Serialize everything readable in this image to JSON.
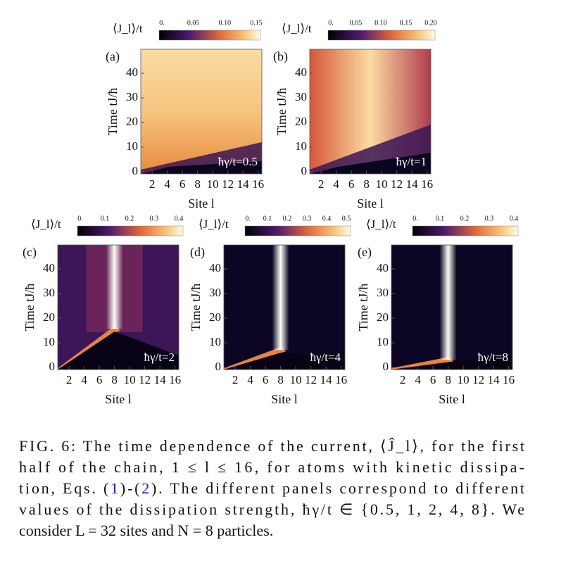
{
  "figure": {
    "panels": [
      {
        "label": "(a)",
        "annotation": "ħγ/t=0.5",
        "colorbar_label": "⟨J_l⟩/t",
        "colorbar_ticks": [
          "0.",
          "0.05",
          "0.10",
          "0.15"
        ],
        "y_label": "Time tJ/ħ",
        "x_label": "Site l",
        "yticks": [
          "0",
          "10",
          "20",
          "30",
          "40"
        ],
        "xticks": [
          "2",
          "4",
          "6",
          "8",
          "10",
          "12",
          "14",
          "16"
        ]
      },
      {
        "label": "(b)",
        "annotation": "ħγ/t=1",
        "colorbar_label": "⟨J_l⟩/t",
        "colorbar_ticks": [
          "0.",
          "0.05",
          "0.10",
          "0.15",
          "0.20"
        ],
        "y_label": "Time tJ/ħ",
        "x_label": "Site l",
        "yticks": [
          "0",
          "10",
          "20",
          "30",
          "40"
        ],
        "xticks": [
          "2",
          "4",
          "6",
          "8",
          "10",
          "12",
          "14",
          "16"
        ]
      },
      {
        "label": "(c)",
        "annotation": "ħγ/t=2",
        "colorbar_label": "⟨J_l⟩/t",
        "colorbar_ticks": [
          "0.",
          "0.1",
          "0.2",
          "0.3",
          "0.4"
        ],
        "y_label": "Time tJ/ħ",
        "x_label": "Site l",
        "yticks": [
          "0",
          "10",
          "20",
          "30",
          "40"
        ],
        "xticks": [
          "2",
          "4",
          "6",
          "8",
          "10",
          "12",
          "14",
          "16"
        ]
      },
      {
        "label": "(d)",
        "annotation": "ħγ/t=4",
        "colorbar_label": "⟨J_l⟩/t",
        "colorbar_ticks": [
          "0.",
          "0.1",
          "0.2",
          "0.3",
          "0.4",
          "0.5"
        ],
        "y_label": "Time tJ/ħ",
        "x_label": "Site l",
        "yticks": [
          "0",
          "10",
          "20",
          "30",
          "40"
        ],
        "xticks": [
          "2",
          "4",
          "6",
          "8",
          "10",
          "12",
          "14",
          "16"
        ]
      },
      {
        "label": "(e)",
        "annotation": "ħγ/t=8",
        "colorbar_label": "⟨J_l⟩/t",
        "colorbar_ticks": [
          "0.",
          "0.1",
          "0.2",
          "0.3",
          "0.4"
        ],
        "y_label": "Time tJ/ħ",
        "x_label": "Site l",
        "yticks": [
          "0",
          "10",
          "20",
          "30",
          "40"
        ],
        "xticks": [
          "2",
          "4",
          "6",
          "8",
          "10",
          "12",
          "14",
          "16"
        ]
      }
    ]
  },
  "caption": {
    "lines": [
      "FIG. 6: The time dependence of the current, ⟨Ĵ_l⟩, for the first",
      "half of the chain, 1 ≤ l ≤ 16, for atoms with kinetic dissipa-",
      [
        "tion, Eqs. (",
        "1",
        ")-(",
        "2",
        "). The different panels correspond to different"
      ],
      "values of the dissipation strength, ħγ/t ∈ {0.5, 1, 2, 4, 8}.  We",
      "consider L = 32 sites and N = 8 particles."
    ]
  }
}
